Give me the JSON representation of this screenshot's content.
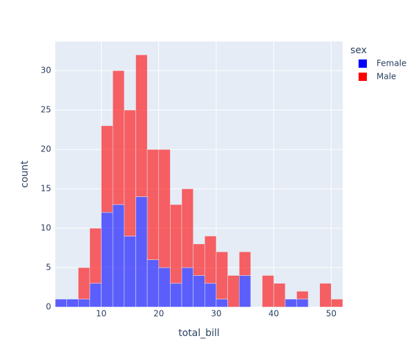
{
  "chart_data": {
    "type": "histogram",
    "barmode": "stack",
    "x_label": "total_bill",
    "y_label": "count",
    "legend_title": "sex",
    "bins": [
      2,
      4,
      6,
      8,
      10,
      12,
      14,
      16,
      18,
      20,
      22,
      24,
      26,
      28,
      30,
      32,
      34,
      36,
      38,
      40,
      42,
      44,
      46,
      48,
      50,
      52
    ],
    "series": [
      {
        "name": "Female",
        "color": "#0000ff",
        "values": [
          1,
          1,
          1,
          3,
          12,
          13,
          9,
          14,
          6,
          5,
          3,
          5,
          4,
          3,
          1,
          0,
          4,
          0,
          0,
          0,
          1,
          1,
          0,
          0,
          0
        ]
      },
      {
        "name": "Male",
        "color": "#ff0000",
        "values": [
          0,
          0,
          4,
          7,
          11,
          17,
          16,
          18,
          14,
          15,
          10,
          10,
          4,
          6,
          6,
          4,
          3,
          0,
          4,
          3,
          0,
          1,
          0,
          3,
          1
        ]
      }
    ],
    "xlim": [
      2,
      52
    ],
    "ylim": [
      0,
      33.7
    ],
    "xticks": [
      10,
      20,
      30,
      40,
      50
    ],
    "yticks": [
      0,
      5,
      10,
      15,
      20,
      25,
      30
    ],
    "grid": true,
    "legend": "top-right"
  }
}
